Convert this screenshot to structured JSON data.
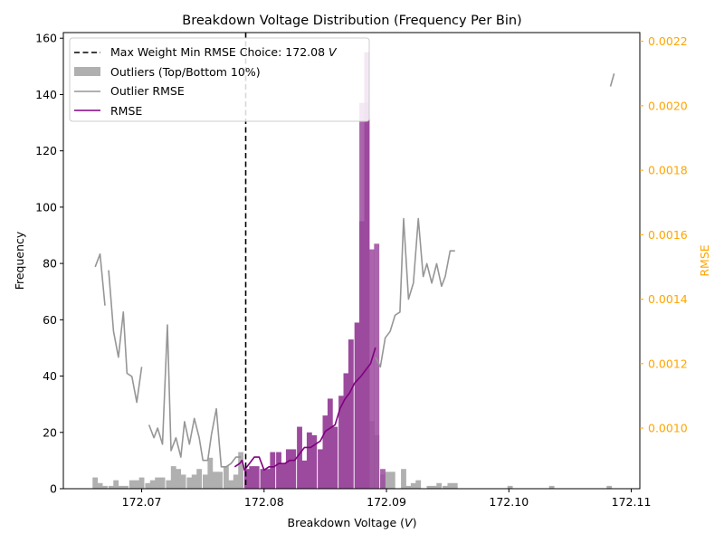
{
  "chart_data": {
    "type": "bar",
    "title": "Breakdown Voltage Distribution (Frequency Per Bin)",
    "xlabel": "Breakdown Voltage (",
    "xlabel_unit": "V",
    "xlabel_end": ")",
    "ylabel": "Frequency",
    "y2label": "RMSE",
    "xlim": [
      172.0636,
      172.1107
    ],
    "ylim": [
      0,
      162
    ],
    "y2lim": [
      0.000812,
      0.002227
    ],
    "bin_width": 0.00043,
    "x_ticks": [
      "172.07",
      "172.08",
      "172.09",
      "172.10",
      "172.11"
    ],
    "x_tick_values": [
      172.07,
      172.08,
      172.09,
      172.1,
      172.11
    ],
    "y_ticks": [
      "0",
      "20",
      "40",
      "60",
      "80",
      "100",
      "120",
      "140",
      "160"
    ],
    "y_tick_values": [
      0,
      20,
      40,
      60,
      80,
      100,
      120,
      140,
      160
    ],
    "y2_ticks": [
      "0.0010",
      "0.0012",
      "0.0014",
      "0.0016",
      "0.0018",
      "0.0020",
      "0.0022"
    ],
    "y2_tick_values": [
      0.001,
      0.0012,
      0.0014,
      0.0016,
      0.0018,
      0.002,
      0.0022
    ],
    "colors": {
      "outliers": "#b0b0b0",
      "core": "#9c4a9e",
      "outlier_rmse": "#969696",
      "rmse": "#800080",
      "vline": "#000000",
      "right_axis": "#ffa500"
    },
    "vline": {
      "x": 172.0785,
      "label": "Max Weight Min RMSE Choice: 172.08 ",
      "unit": "V"
    },
    "legend": {
      "position": "upper-left",
      "entries": [
        "Max Weight Min RMSE Choice: 172.08 V",
        "Outliers (Top/Bottom 10%)",
        "Outlier RMSE",
        "RMSE"
      ]
    },
    "series": [
      {
        "name": "Outliers (Top/Bottom 10%)",
        "kind": "bar",
        "x": [
          172.0662,
          172.0666,
          172.067,
          172.0675,
          172.0679,
          172.0683,
          172.0687,
          172.0692,
          172.0696,
          172.07,
          172.0705,
          172.0709,
          172.0713,
          172.0717,
          172.0722,
          172.0726,
          172.073,
          172.0734,
          172.0739,
          172.0743,
          172.0747,
          172.0752,
          172.0756,
          172.076,
          172.0764,
          172.0769,
          172.0773,
          172.0777,
          172.0781,
          172.0884,
          172.0888,
          172.0892,
          172.0897,
          172.0901,
          172.0905,
          172.0909,
          172.0914,
          172.0918,
          172.0922,
          172.0926,
          172.0931,
          172.0935,
          172.0939,
          172.0943,
          172.0948,
          172.0952,
          172.0956,
          172.1001,
          172.1035,
          172.1082
        ],
        "values": [
          4,
          2,
          1,
          1,
          3,
          1,
          1,
          3,
          3,
          4,
          2,
          3,
          4,
          4,
          3,
          8,
          7,
          5,
          4,
          5,
          7,
          5,
          11,
          6,
          6,
          8,
          3,
          5,
          13,
          41,
          24,
          19,
          5,
          6,
          6,
          0,
          7,
          1,
          2,
          3,
          0,
          1,
          1,
          2,
          1,
          2,
          2,
          1,
          1,
          1
        ]
      },
      {
        "name": "",
        "kind": "bar",
        "x": [
          172.0786,
          172.079,
          172.0794,
          172.0799,
          172.0803,
          172.0807,
          172.0812,
          172.0816,
          172.082,
          172.0824,
          172.0829,
          172.0833,
          172.0837,
          172.0841,
          172.0846,
          172.085,
          172.0854,
          172.0858,
          172.0863,
          172.0867,
          172.0871,
          172.0876,
          172.088,
          172.0884
        ],
        "values": [
          7,
          8,
          8,
          7,
          7,
          13,
          13,
          9,
          14,
          14,
          22,
          10,
          20,
          19,
          14,
          26,
          32,
          22,
          33,
          41,
          53,
          59,
          95,
          137
        ]
      },
      {
        "name": "",
        "kind": "bar",
        "x": [
          172.088,
          172.0884,
          172.0888,
          172.0892,
          172.0897
        ],
        "values": [
          137,
          155,
          85,
          87,
          7
        ]
      },
      {
        "name": "Outlier RMSE",
        "kind": "line",
        "axis": "right",
        "segments": [
          {
            "x": [
              172.0662,
              172.0666,
              172.067
            ],
            "y": [
              0.0015,
              0.00154,
              0.00138
            ]
          },
          {
            "x": [
              172.0673,
              172.0677,
              172.0681,
              172.0685,
              172.0688,
              172.0692,
              172.0696,
              172.07
            ],
            "y": [
              0.00149,
              0.0013,
              0.00122,
              0.00136,
              0.00117,
              0.00116,
              0.00108,
              0.00119
            ]
          },
          {
            "x": [
              172.0706,
              172.071,
              172.0713,
              172.0717,
              172.0721,
              172.0724,
              172.0728,
              172.0732,
              172.0735,
              172.0739,
              172.0743,
              172.0747,
              172.075,
              172.0754,
              172.0757
            ],
            "y": [
              0.00101,
              0.00097,
              0.001,
              0.00095,
              0.00132,
              0.00093,
              0.00097,
              0.00091,
              0.00102,
              0.00095,
              0.00103,
              0.00097,
              0.0009,
              0.0009,
              0.00098
            ]
          },
          {
            "x": [
              172.0757,
              172.0761,
              172.0765,
              172.0769,
              172.0773,
              172.0777,
              172.0781
            ],
            "y": [
              0.00098,
              0.00106,
              0.00088,
              0.00088,
              0.00089,
              0.00091,
              0.00091
            ]
          },
          {
            "x": [
              172.0891,
              172.0895,
              172.0899,
              172.0903,
              172.0907,
              172.0911,
              172.0914,
              172.0918,
              172.0922,
              172.0926,
              172.093,
              172.0933,
              172.0937,
              172.0941,
              172.0945,
              172.0948,
              172.0952,
              172.0956
            ],
            "y": [
              0.00122,
              0.00119,
              0.00128,
              0.0013,
              0.00135,
              0.00136,
              0.00165,
              0.0014,
              0.00145,
              0.00165,
              0.00147,
              0.00151,
              0.00145,
              0.00151,
              0.00144,
              0.00147,
              0.00155,
              0.00155
            ]
          },
          {
            "x": [
              172.1083,
              172.1086
            ],
            "y": [
              0.00206,
              0.0021
            ]
          }
        ]
      },
      {
        "name": "RMSE",
        "kind": "line",
        "axis": "right",
        "x": [
          172.0776,
          172.078,
          172.0782,
          172.0784,
          172.0786,
          172.0788,
          172.0792,
          172.0796,
          172.08,
          172.0804,
          172.0808,
          172.0812,
          172.0817,
          172.0821,
          172.0825,
          172.0829,
          172.0833,
          172.0838,
          172.0842,
          172.0846,
          172.085,
          172.0854,
          172.0858,
          172.0862,
          172.0866,
          172.087,
          172.0874,
          172.0879,
          172.0883,
          172.0887,
          172.0891
        ],
        "y": [
          0.00088,
          0.00089,
          0.0009,
          0.00087,
          0.00088,
          0.00089,
          0.00091,
          0.00091,
          0.00087,
          0.00088,
          0.00088,
          0.00089,
          0.00089,
          0.0009,
          0.0009,
          0.00092,
          0.00094,
          0.00094,
          0.00095,
          0.00096,
          0.00099,
          0.001,
          0.00101,
          0.00106,
          0.00109,
          0.00111,
          0.00114,
          0.00116,
          0.00118,
          0.0012,
          0.00125
        ]
      }
    ]
  }
}
